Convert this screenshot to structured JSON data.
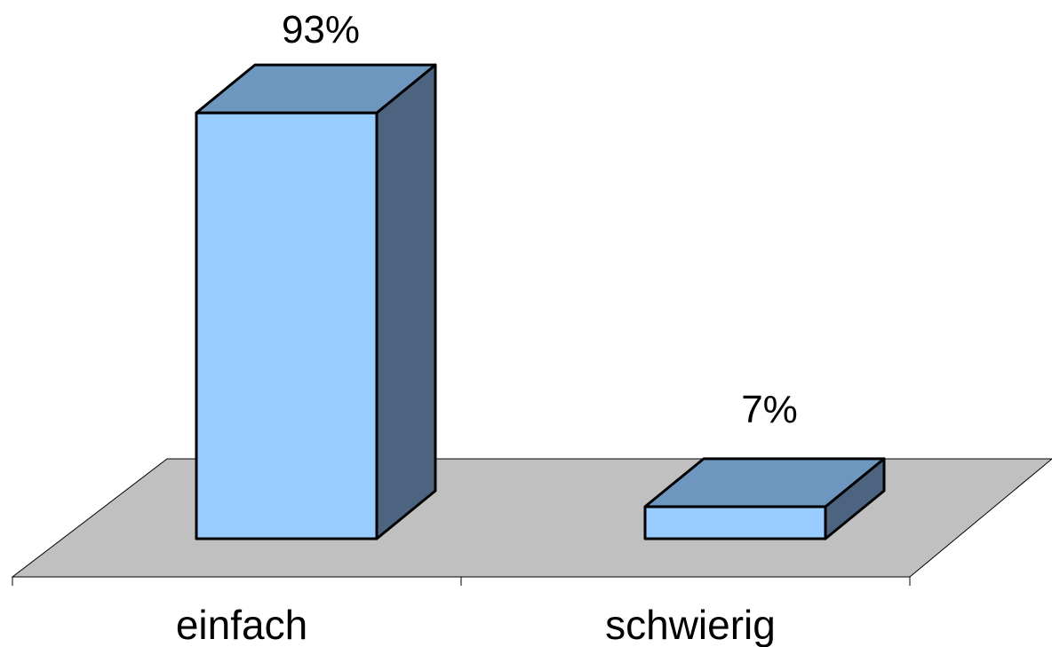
{
  "chart_data": {
    "type": "bar",
    "categories": [
      "einfach",
      "schwierig"
    ],
    "values": [
      93,
      7
    ],
    "data_labels": [
      "93%",
      "7%"
    ],
    "ylim": [
      0,
      100
    ],
    "grid": false,
    "colors": {
      "bar_front": "#99ccff",
      "bar_top": "#6e97c0",
      "bar_side": "#4d6480",
      "floor": "#c0c0c0",
      "stroke": "#000000"
    }
  }
}
